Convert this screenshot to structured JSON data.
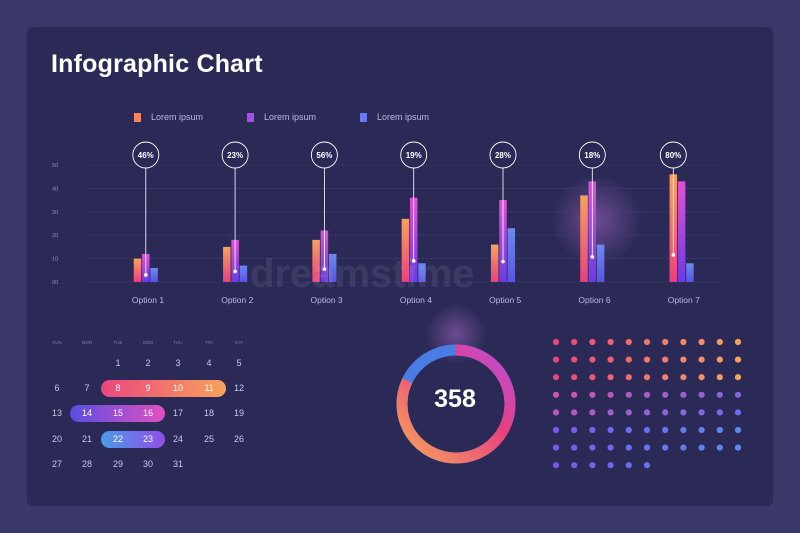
{
  "title": "Infographic Chart",
  "watermark": "dreamstime",
  "legend": [
    {
      "label": "Lorem ipsum",
      "color": "#f6845e"
    },
    {
      "label": "Lorem ipsum",
      "color": "#a94de6"
    },
    {
      "label": "Lorem ipsum",
      "color": "#6c78ee"
    }
  ],
  "chart_data": {
    "type": "bar",
    "categories": [
      "Option 1",
      "Option 2",
      "Option 3",
      "Option 4",
      "Option 5",
      "Option 6",
      "Option 7"
    ],
    "series": [
      {
        "values": [
          10,
          15,
          18,
          27,
          16,
          37,
          46
        ]
      },
      {
        "values": [
          12,
          18,
          22,
          36,
          35,
          43,
          43
        ]
      },
      {
        "values": [
          6,
          7,
          12,
          8,
          23,
          16,
          8
        ]
      }
    ],
    "callouts": [
      "46%",
      "23%",
      "56%",
      "19%",
      "28%",
      "18%",
      "80%"
    ],
    "yticks": [
      "00",
      "10",
      "20",
      "30",
      "40",
      "50"
    ],
    "ylim": [
      0,
      50
    ],
    "grid": true
  },
  "calendar": {
    "days": [
      "SUN",
      "MON",
      "TUE",
      "WED",
      "THU",
      "FRI",
      "SAT"
    ],
    "weeks": [
      [
        "",
        "",
        "1",
        "2",
        "3",
        "4",
        "5"
      ],
      [
        "6",
        "7",
        "8",
        "9",
        "10",
        "11",
        "12"
      ],
      [
        "13",
        "14",
        "15",
        "16",
        "17",
        "18",
        "19"
      ],
      [
        "20",
        "21",
        "22",
        "23",
        "24",
        "25",
        "26"
      ],
      [
        "27",
        "28",
        "29",
        "30",
        "31",
        "",
        ""
      ]
    ],
    "highlights": [
      {
        "from": "8",
        "to": "11",
        "color_start": "#e9467e",
        "color_end": "#f7a35c"
      },
      {
        "from": "14",
        "to": "16",
        "color_start": "#5a4de0",
        "color_end": "#e050c0"
      },
      {
        "from": "22",
        "to": "23",
        "color_start": "#4c9be8",
        "color_end": "#8f4fe8"
      }
    ]
  },
  "donut": {
    "value": "358",
    "fraction": 0.82
  },
  "dots": {
    "rows": 8,
    "cols": 11,
    "last_row_count": 6
  }
}
